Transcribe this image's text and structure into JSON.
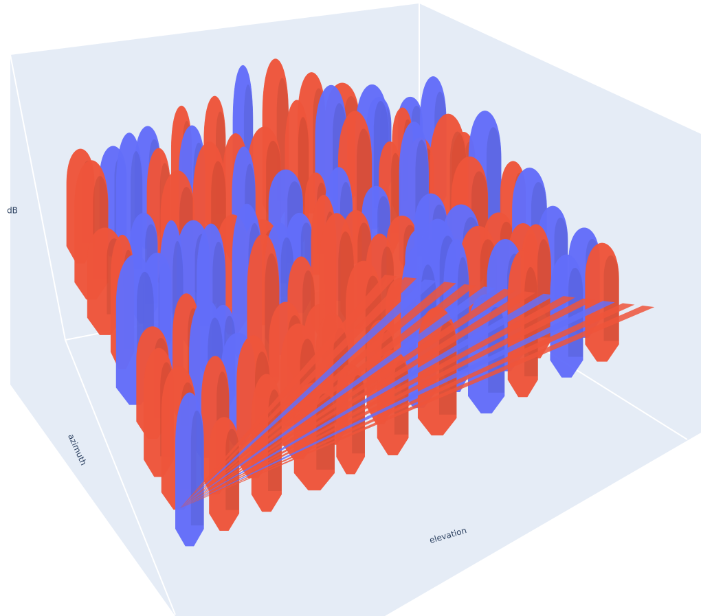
{
  "chart_data": {
    "type": "surface3d",
    "xaxis_title": "elevation",
    "yaxis_title": "azimuth",
    "zaxis_title": "dB",
    "series": [
      {
        "color": "#ef553b"
      },
      {
        "color": "#636efa"
      }
    ]
  }
}
